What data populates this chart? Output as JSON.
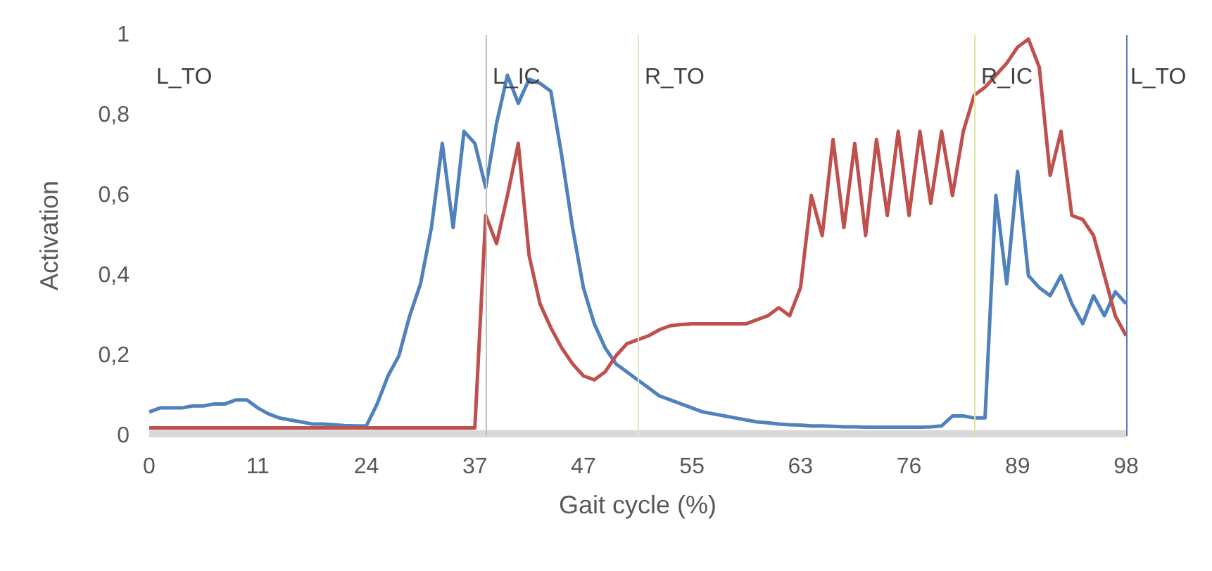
{
  "chart_data": {
    "type": "line",
    "xlabel": "Gait cycle (%)",
    "ylabel": "Activation",
    "categories": [
      "0",
      null,
      null,
      null,
      null,
      null,
      null,
      null,
      null,
      null,
      "11",
      null,
      null,
      null,
      null,
      null,
      null,
      null,
      null,
      null,
      "24",
      null,
      null,
      null,
      null,
      null,
      null,
      null,
      null,
      null,
      "37",
      null,
      null,
      null,
      null,
      null,
      null,
      null,
      null,
      null,
      "47",
      null,
      null,
      null,
      null,
      null,
      null,
      null,
      null,
      null,
      "55",
      null,
      null,
      null,
      null,
      null,
      null,
      null,
      null,
      null,
      "63",
      null,
      null,
      null,
      null,
      null,
      null,
      null,
      null,
      null,
      "76",
      null,
      null,
      null,
      null,
      null,
      null,
      null,
      null,
      null,
      "89",
      null,
      null,
      null,
      null,
      null,
      null,
      null,
      null,
      null,
      "98"
    ],
    "series": [
      {
        "color": "#4f81bd",
        "values": [
          0.06,
          0.07,
          0.07,
          0.07,
          0.075,
          0.075,
          0.08,
          0.08,
          0.09,
          0.09,
          0.07,
          0.055,
          0.045,
          0.04,
          0.035,
          0.03,
          0.03,
          0.028,
          0.026,
          0.025,
          0.025,
          0.08,
          0.15,
          0.2,
          0.3,
          0.38,
          0.52,
          0.73,
          0.52,
          0.76,
          0.73,
          0.62,
          0.78,
          0.9,
          0.83,
          0.89,
          0.88,
          0.86,
          0.7,
          0.52,
          0.37,
          0.28,
          0.22,
          0.18,
          0.16,
          0.14,
          0.12,
          0.1,
          0.09,
          0.08,
          0.07,
          0.06,
          0.055,
          0.05,
          0.045,
          0.04,
          0.035,
          0.033,
          0.03,
          0.028,
          0.027,
          0.025,
          0.025,
          0.024,
          0.023,
          0.023,
          0.022,
          0.022,
          0.022,
          0.022,
          0.022,
          0.022,
          0.023,
          0.025,
          0.05,
          0.05,
          0.045,
          0.045,
          0.6,
          0.38,
          0.66,
          0.4,
          0.37,
          0.35,
          0.4,
          0.33,
          0.28,
          0.35,
          0.3,
          0.36,
          0.33
        ]
      },
      {
        "color": "#c0504d",
        "values": [
          0.02,
          0.02,
          0.02,
          0.02,
          0.02,
          0.02,
          0.02,
          0.02,
          0.02,
          0.02,
          0.02,
          0.02,
          0.02,
          0.02,
          0.02,
          0.02,
          0.02,
          0.02,
          0.02,
          0.02,
          0.02,
          0.02,
          0.02,
          0.02,
          0.02,
          0.02,
          0.02,
          0.02,
          0.02,
          0.02,
          0.02,
          0.55,
          0.48,
          0.6,
          0.73,
          0.45,
          0.33,
          0.27,
          0.22,
          0.18,
          0.15,
          0.14,
          0.16,
          0.2,
          0.23,
          0.24,
          0.25,
          0.265,
          0.275,
          0.278,
          0.28,
          0.28,
          0.28,
          0.28,
          0.28,
          0.28,
          0.29,
          0.3,
          0.32,
          0.3,
          0.37,
          0.6,
          0.5,
          0.74,
          0.52,
          0.73,
          0.5,
          0.74,
          0.55,
          0.76,
          0.55,
          0.76,
          0.58,
          0.76,
          0.6,
          0.76,
          0.85,
          0.87,
          0.9,
          0.93,
          0.97,
          0.99,
          0.92,
          0.65,
          0.76,
          0.55,
          0.54,
          0.5,
          0.4,
          0.3,
          0.25
        ]
      }
    ],
    "ylim": [
      0,
      1
    ],
    "yticks": [
      0,
      {
        "value": 0.2,
        "label": "0,2"
      },
      {
        "value": 0.4,
        "label": "0,4"
      },
      {
        "value": 0.6,
        "label": "0,6"
      },
      {
        "value": 0.8,
        "label": "0,8"
      },
      1
    ],
    "ref_lines": [
      {
        "axis": "x",
        "value": "98",
        "label": "L_TO",
        "color": "#4f81bd"
      }
    ],
    "annotations": [
      "L_TO",
      "L_IC",
      "R_TO",
      "R_IC"
    ],
    "bands": [
      {
        "axis": "y",
        "from": 0,
        "to": 0.015,
        "color": "#d9d9d9"
      }
    ],
    "grid": false,
    "marker": "none",
    "line_style": "solid"
  }
}
